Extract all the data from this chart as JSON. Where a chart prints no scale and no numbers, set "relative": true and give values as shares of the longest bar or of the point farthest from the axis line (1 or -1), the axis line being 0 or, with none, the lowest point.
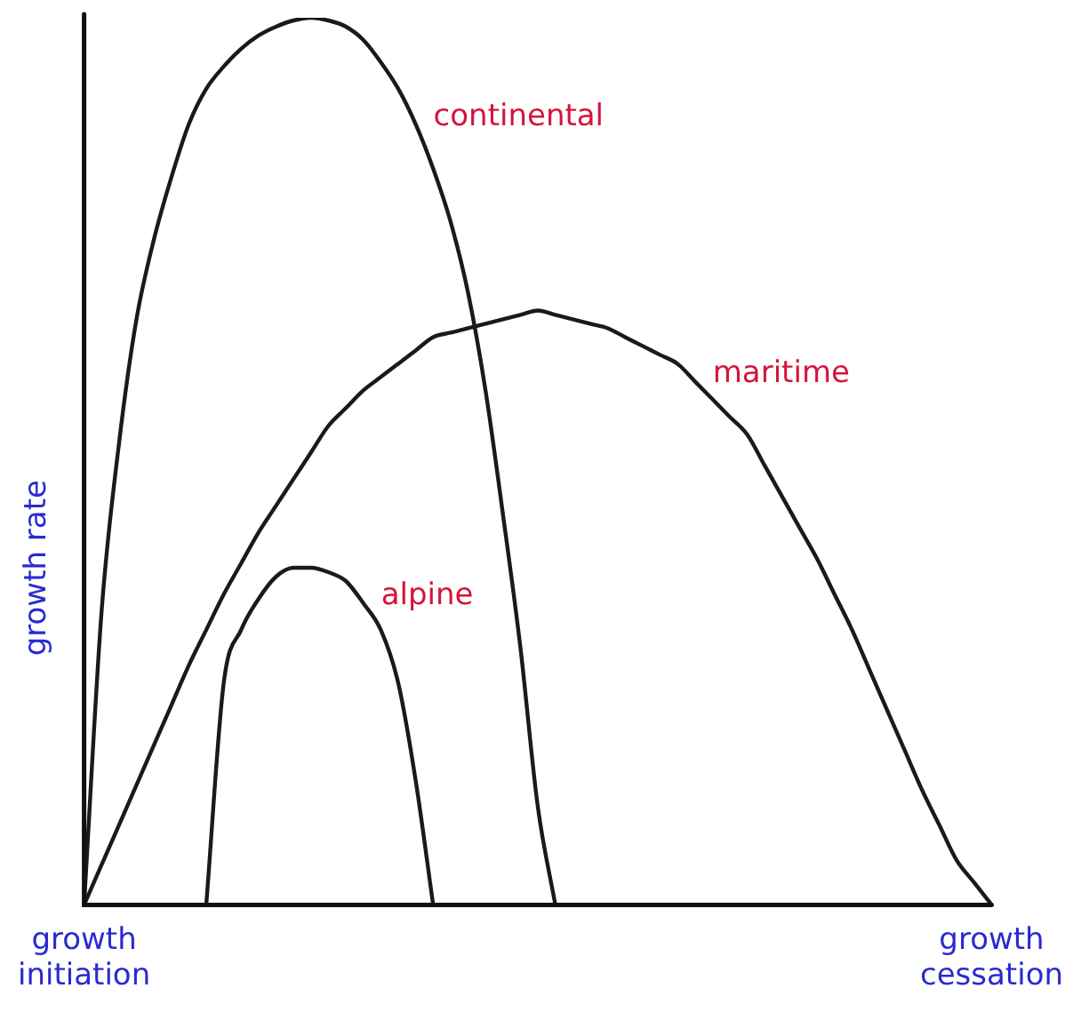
{
  "chart_data": {
    "type": "line",
    "relative": true,
    "ylabel": "growth rate",
    "grid": false,
    "legend": false,
    "marker": "none",
    "line_style": "solid",
    "categories": [
      "growth initiation",
      null,
      null,
      null,
      null,
      null,
      null,
      null,
      null,
      null,
      null,
      null,
      null,
      null,
      null,
      null,
      null,
      null,
      null,
      null,
      null,
      null,
      null,
      null,
      null,
      null,
      null,
      null,
      null,
      null,
      null,
      null,
      null,
      null,
      null,
      null,
      null,
      null,
      null,
      null,
      null,
      null,
      null,
      null,
      null,
      null,
      null,
      null,
      null,
      null,
      null,
      null,
      "growth cessation"
    ],
    "series": [
      {
        "name": "continental",
        "color": "#1a1a1a",
        "values": [
          0,
          0.33,
          0.52,
          0.66,
          0.75,
          0.82,
          0.88,
          0.92,
          0.945,
          0.965,
          0.98,
          0.99,
          0.997,
          1,
          0.997,
          0.99,
          0.975,
          0.95,
          0.92,
          0.88,
          0.83,
          0.77,
          0.69,
          0.58,
          0.44,
          0.29,
          0.11,
          0,
          null,
          null,
          null,
          null,
          null,
          null,
          null,
          null,
          null,
          null,
          null,
          null,
          null,
          null,
          null,
          null,
          null,
          null,
          null,
          null,
          null,
          null,
          null,
          null,
          null
        ]
      },
      {
        "name": "maritime",
        "color": "#1a1a1a",
        "values": [
          0,
          0.045,
          0.09,
          0.135,
          0.18,
          0.225,
          0.27,
          0.31,
          0.35,
          0.385,
          0.42,
          0.45,
          0.48,
          0.51,
          0.54,
          0.56,
          0.58,
          0.595,
          0.61,
          0.625,
          0.64,
          0.645,
          0.65,
          0.655,
          0.66,
          0.665,
          0.67,
          0.665,
          0.66,
          0.655,
          0.65,
          0.64,
          0.63,
          0.62,
          0.61,
          0.59,
          0.57,
          0.55,
          0.53,
          0.495,
          0.46,
          0.425,
          0.39,
          0.35,
          0.31,
          0.265,
          0.22,
          0.175,
          0.13,
          0.09,
          0.05,
          0.025,
          0
        ]
      },
      {
        "name": "alpine",
        "color": "#1a1a1a",
        "values": [
          null,
          null,
          null,
          null,
          null,
          null,
          null,
          0,
          0.25,
          0.31,
          0.345,
          0.37,
          0.38,
          0.38,
          0.375,
          0.365,
          0.34,
          0.31,
          0.25,
          0.14,
          0,
          null,
          null,
          null,
          null,
          null,
          null,
          null,
          null,
          null,
          null,
          null,
          null,
          null,
          null,
          null,
          null,
          null,
          null,
          null,
          null,
          null,
          null,
          null,
          null,
          null,
          null,
          null,
          null,
          null,
          null,
          null,
          null
        ]
      }
    ]
  }
}
